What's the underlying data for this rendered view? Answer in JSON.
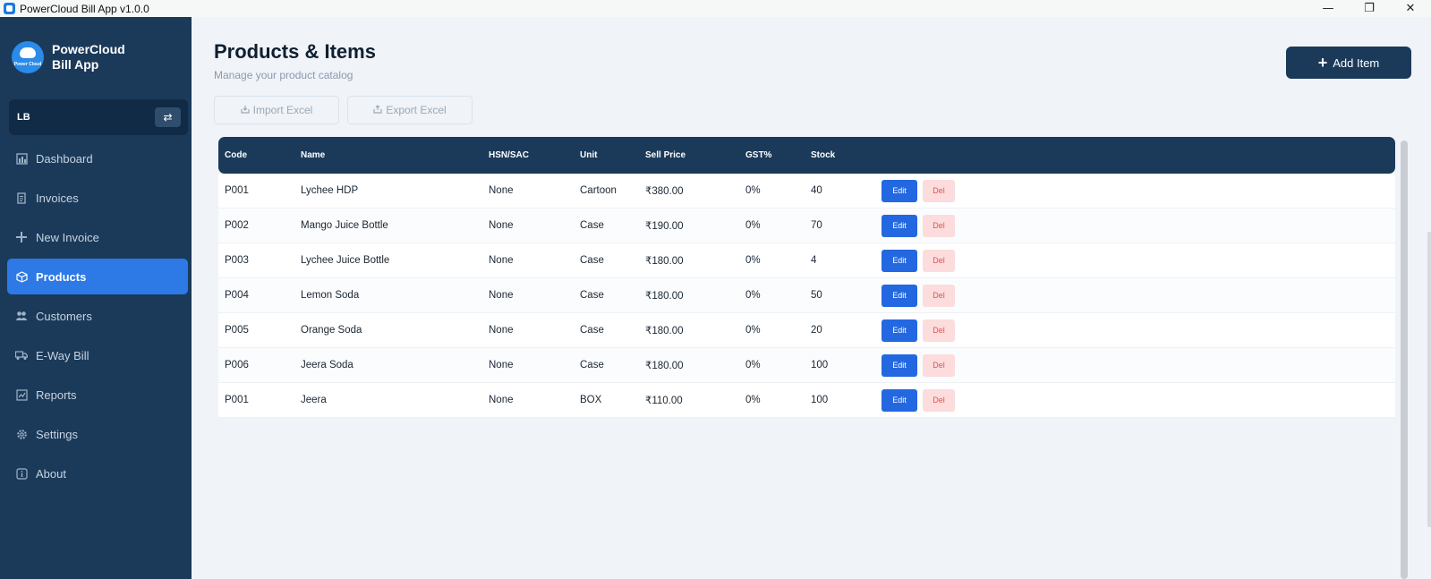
{
  "window": {
    "title": "PowerCloud Bill App v1.0.0",
    "minimize": "—",
    "maximize": "❐",
    "close": "✕"
  },
  "brand": {
    "name_line1": "PowerCloud",
    "name_line2": "Bill App",
    "logo_text": "Power Cloud"
  },
  "company": {
    "code": "LB",
    "switch_icon": "⇄"
  },
  "nav": [
    {
      "label": "Dashboard",
      "icon": "chart-icon"
    },
    {
      "label": "Invoices",
      "icon": "document-icon"
    },
    {
      "label": "New Invoice",
      "icon": "plus-icon"
    },
    {
      "label": "Products",
      "icon": "box-icon",
      "active": true
    },
    {
      "label": "Customers",
      "icon": "users-icon"
    },
    {
      "label": "E-Way Bill",
      "icon": "truck-icon"
    },
    {
      "label": "Reports",
      "icon": "report-icon"
    },
    {
      "label": "Settings",
      "icon": "gear-icon"
    },
    {
      "label": "About",
      "icon": "info-icon"
    }
  ],
  "page": {
    "title": "Products & Items",
    "subtitle": "Manage your product catalog",
    "add_button": "Add Item",
    "import_button": "Import Excel",
    "export_button": "Export Excel"
  },
  "table": {
    "headers": {
      "code": "Code",
      "name": "Name",
      "hsn": "HSN/SAC",
      "unit": "Unit",
      "price": "Sell Price",
      "gst": "GST%",
      "stock": "Stock"
    },
    "edit_label": "Edit",
    "del_label": "Del",
    "rows": [
      {
        "code": "P001",
        "name": "Lychee HDP",
        "hsn": "None",
        "unit": "Cartoon",
        "price": "₹380.00",
        "gst": "0%",
        "stock": "40"
      },
      {
        "code": "P002",
        "name": "Mango Juice Bottle",
        "hsn": "None",
        "unit": "Case",
        "price": "₹190.00",
        "gst": "0%",
        "stock": "70"
      },
      {
        "code": "P003",
        "name": "Lychee Juice Bottle",
        "hsn": "None",
        "unit": "Case",
        "price": "₹180.00",
        "gst": "0%",
        "stock": "4"
      },
      {
        "code": "P004",
        "name": "Lemon Soda",
        "hsn": "None",
        "unit": "Case",
        "price": "₹180.00",
        "gst": "0%",
        "stock": "50"
      },
      {
        "code": "P005",
        "name": "Orange Soda",
        "hsn": "None",
        "unit": "Case",
        "price": "₹180.00",
        "gst": "0%",
        "stock": "20"
      },
      {
        "code": "P006",
        "name": "Jeera Soda",
        "hsn": "None",
        "unit": "Case",
        "price": "₹180.00",
        "gst": "0%",
        "stock": "100"
      },
      {
        "code": "P001",
        "name": "Jeera",
        "hsn": "None",
        "unit": "BOX",
        "price": "₹110.00",
        "gst": "0%",
        "stock": "100"
      }
    ]
  },
  "colors": {
    "sidebar": "#1b3a5a",
    "accent": "#2d79e5",
    "edit": "#2368e0",
    "delete_bg": "#fcdcdc",
    "delete_text": "#e05454"
  }
}
